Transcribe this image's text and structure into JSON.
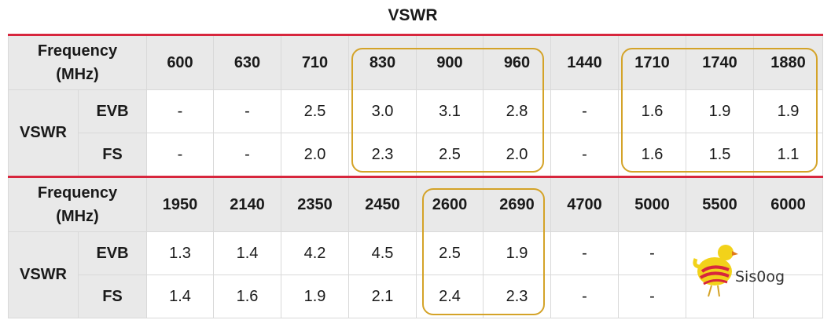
{
  "title": "VSWR",
  "labels": {
    "frequency_line1": "Frequency",
    "frequency_line2": "(MHz)",
    "group": "VSWR",
    "evb": "EVB",
    "fs": "FS"
  },
  "table1": {
    "frequencies": [
      "600",
      "630",
      "710",
      "830",
      "900",
      "960",
      "1440",
      "1710",
      "1740",
      "1880"
    ],
    "evb": [
      "-",
      "-",
      "2.5",
      "3.0",
      "3.1",
      "2.8",
      "-",
      "1.6",
      "1.9",
      "1.9"
    ],
    "fs": [
      "-",
      "-",
      "2.0",
      "2.3",
      "2.5",
      "2.0",
      "-",
      "1.6",
      "1.5",
      "1.1"
    ]
  },
  "table2": {
    "frequencies": [
      "1950",
      "2140",
      "2350",
      "2450",
      "2600",
      "2690",
      "4700",
      "5000",
      "5500",
      "6000"
    ],
    "evb": [
      "1.3",
      "1.4",
      "4.2",
      "4.5",
      "2.5",
      "1.9",
      "-",
      "-",
      "",
      ""
    ],
    "fs": [
      "1.4",
      "1.6",
      "1.9",
      "2.1",
      "2.4",
      "2.3",
      "-",
      "-",
      "",
      ""
    ]
  },
  "logo": {
    "text": "Sis0og"
  },
  "colors": {
    "accent_red": "#d7263d",
    "highlight_gold": "#d4a328",
    "header_gray": "#e9e9e9"
  }
}
